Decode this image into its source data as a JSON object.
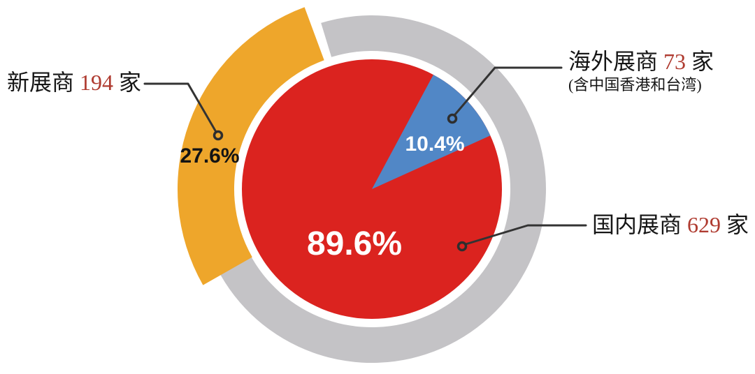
{
  "chart_data": {
    "type": "pie",
    "title": "",
    "unit": "家",
    "slices": [
      {
        "name": "国内展商",
        "value": 629,
        "pct": 89.6,
        "pct_label": "89.6%",
        "color": "#DB231F"
      },
      {
        "name": "海外展商",
        "value": 73,
        "pct": 10.4,
        "pct_label": "10.4%",
        "color": "#5187C6",
        "note": "(含中国香港和台湾)"
      }
    ],
    "ring": {
      "name": "新展商",
      "value": 194,
      "pct": 27.6,
      "pct_label": "27.6%",
      "color": "#EEA62B",
      "track_color": "#C4C3C6"
    },
    "legend_position": "callouts",
    "grid": false
  },
  "labels": {
    "new": {
      "prefix": "新展商 ",
      "number": "194",
      "suffix": " 家"
    },
    "overseas": {
      "prefix": "海外展商 ",
      "number": "73",
      "suffix": " 家",
      "note": "(含中国香港和台湾)"
    },
    "domestic": {
      "prefix": "国内展商 ",
      "number": "629",
      "suffix": " 家"
    }
  },
  "colors": {
    "domestic_red": "#DB231F",
    "overseas_blue": "#5187C6",
    "new_orange": "#EEA62B",
    "ring_gray": "#C4C3C6",
    "leader_line": "#333333",
    "number_red": "#AF3B30",
    "text_black": "#161616"
  }
}
